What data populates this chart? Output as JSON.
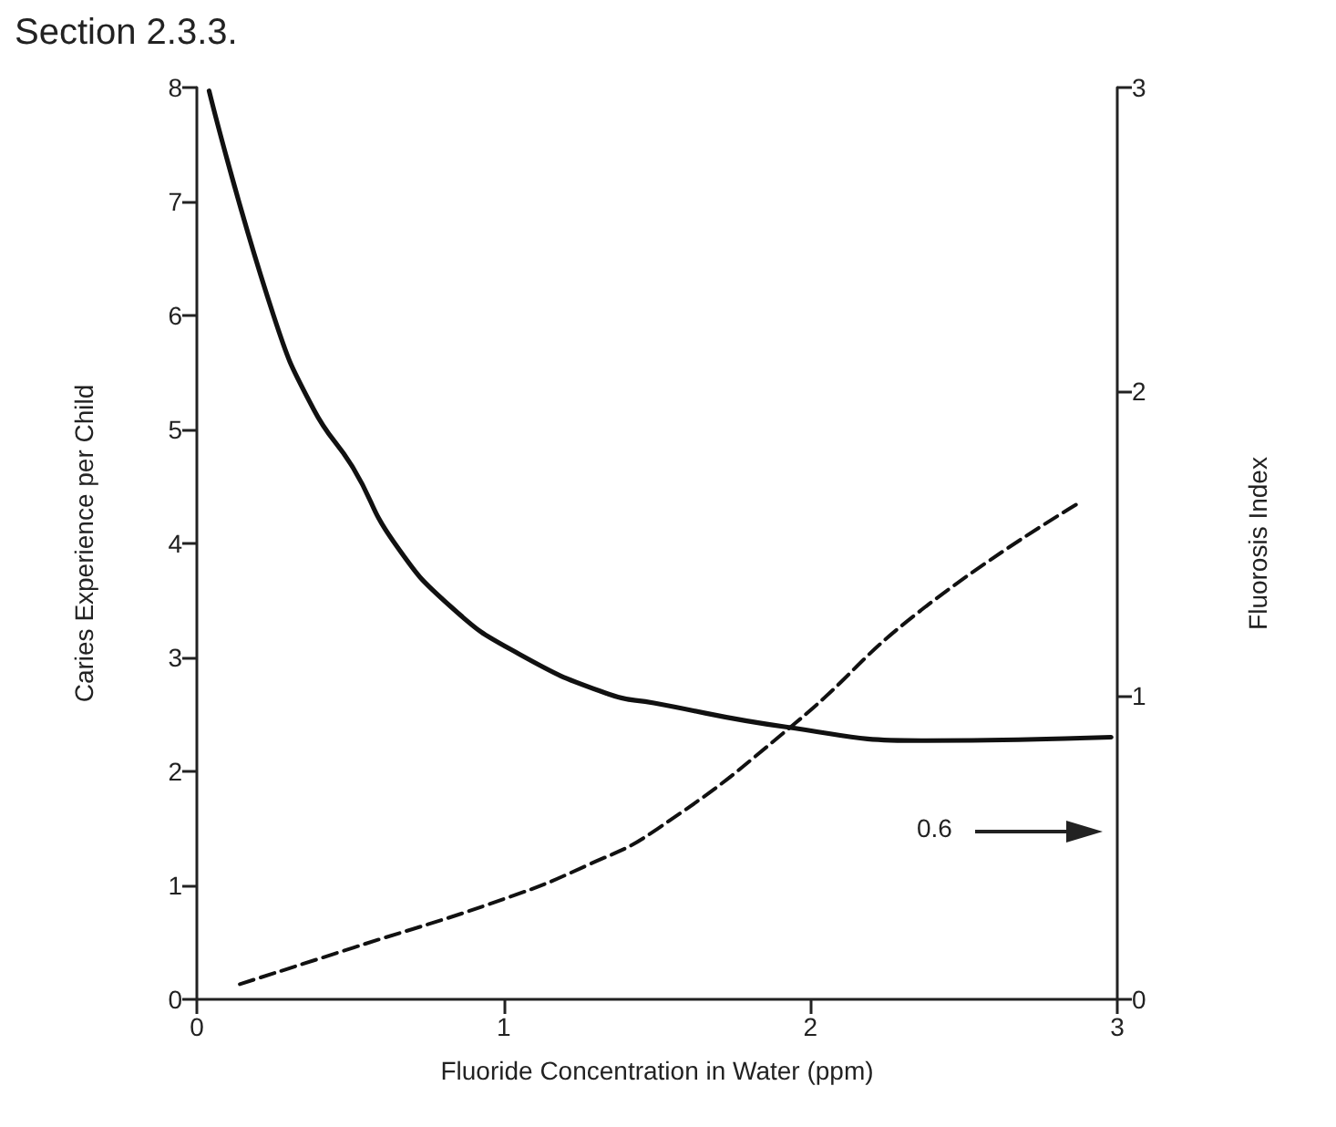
{
  "chart_data": {
    "type": "line",
    "xlabel": "Fluoride Concentration in Water (ppm)",
    "ylabel": "Caries Experience per Child",
    "y2label": "Fluorosis Index",
    "annotations": [
      "Section 2.3.3.",
      "0.6"
    ],
    "xlim": [
      0,
      3
    ],
    "xticks": [
      0,
      1,
      2,
      3
    ],
    "ylim": [
      0,
      8
    ],
    "yticks": [
      0,
      1,
      2,
      3,
      4,
      5,
      6,
      7,
      8
    ],
    "y2lim": [
      0,
      3
    ],
    "y2ticks": [
      0,
      1,
      2,
      3
    ],
    "grid": false,
    "marker": "none",
    "series": [
      {
        "color": "#111111",
        "line_style": "solid",
        "x": [
          0.04,
          0.25,
          0.38,
          0.51,
          0.64,
          0.83,
          1.05,
          1.34,
          1.49,
          1.92,
          2.36,
          2.98
        ],
        "values": [
          7.97,
          6.0,
          5.18,
          4.66,
          4.02,
          3.44,
          3.03,
          2.68,
          2.6,
          2.39,
          2.27,
          2.3
        ]
      },
      {
        "color": "#111111",
        "line_style": "dashed",
        "axis": "y2",
        "x": [
          0.14,
          0.51,
          1.0,
          1.27,
          1.5,
          1.94,
          2.36,
          2.87
        ],
        "values": [
          0.05,
          0.17,
          0.33,
          0.44,
          0.56,
          0.9,
          1.28,
          1.63
        ]
      }
    ]
  }
}
